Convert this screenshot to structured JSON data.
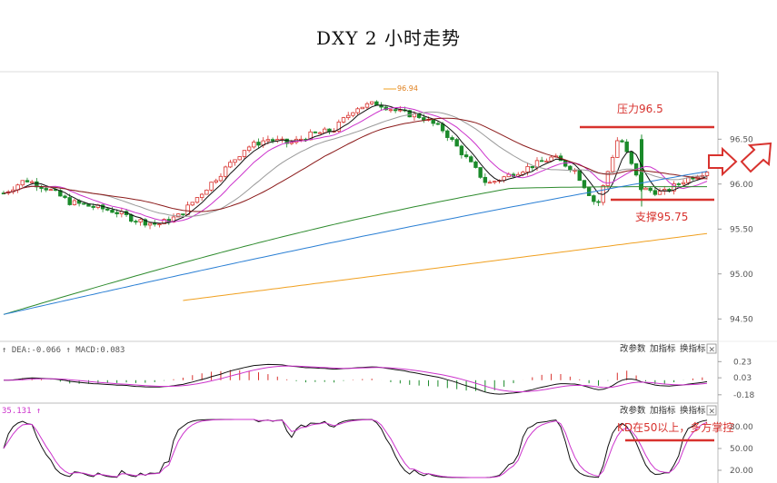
{
  "title": "DXY 2 小时走势",
  "chart_data": {
    "type": "candlestick",
    "title": "DXY 2 小时走势",
    "y_axis": {
      "ticks": [
        "96.50",
        "96.00",
        "95.50",
        "95.00",
        "94.50"
      ],
      "ylim": [
        94.25,
        97.25
      ],
      "position": "right"
    },
    "annotations": {
      "high_label": "96.94",
      "resistance": {
        "label": "压力96.5",
        "value": 96.5
      },
      "support": {
        "label": "支撑95.75",
        "value": 95.75
      },
      "kd_note": "KD在50以上，多方掌控"
    },
    "price_series_approx": [
      95.9,
      96.05,
      95.95,
      95.8,
      95.75,
      95.7,
      95.6,
      95.55,
      95.65,
      95.9,
      96.15,
      96.4,
      96.5,
      96.45,
      96.55,
      96.6,
      96.85,
      96.9,
      96.8,
      96.75,
      96.6,
      96.3,
      96.0,
      96.1,
      96.2,
      96.3,
      96.15,
      95.75,
      96.55,
      95.95,
      95.9,
      96.05,
      96.15
    ],
    "macd_panel": {
      "header": "↑ DEA:-0.066 ↑ MACD:0.083",
      "dea": "-0.066",
      "macd": "0.083",
      "ticks": [
        "0.23",
        "0.03",
        "-0.18"
      ],
      "buttons": [
        "改参数",
        "加指标",
        "换指标",
        "×"
      ]
    },
    "kd_panel": {
      "header": "35.131 ↑",
      "ticks": [
        "80.00",
        "50.00",
        "20.00"
      ],
      "buttons": [
        "改参数",
        "加指标",
        "换指标",
        "×"
      ]
    },
    "colors": {
      "up_candle": "#d8322e",
      "down_candle": "#1a8a2a",
      "ma_black": "#111111",
      "ma_magenta": "#cc33cc",
      "ma_gray": "#9a9a9a",
      "ma_maroon": "#8b1a1a",
      "ma_green": "#2e8b2e",
      "ma_blue": "#2a7fd4",
      "ma_orange": "#f0a020",
      "annotation_red": "#d8322e"
    }
  }
}
